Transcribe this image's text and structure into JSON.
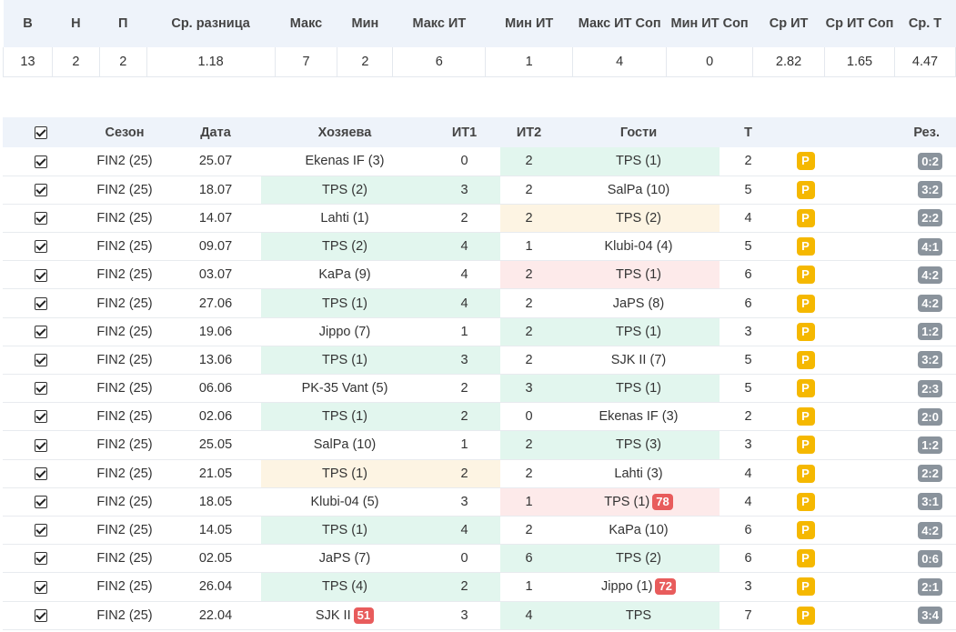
{
  "summary": {
    "headers": [
      "В",
      "Н",
      "П",
      "Ср. разница",
      "Макс",
      "Мин",
      "Макс ИТ",
      "Мин ИТ",
      "Макс ИТ Соп",
      "Мин ИТ Соп",
      "Ср ИТ",
      "Ср ИТ Соп",
      "Ср. Т"
    ],
    "values": [
      "13",
      "2",
      "2",
      "1.18",
      "7",
      "2",
      "6",
      "1",
      "4",
      "0",
      "2.82",
      "1.65",
      "4.47"
    ]
  },
  "matches": {
    "headers": {
      "season": "Сезон",
      "date": "Дата",
      "home": "Хозяева",
      "it1": "ИТ1",
      "it2": "ИТ2",
      "away": "Гости",
      "total": "Т",
      "result": "Рез."
    },
    "p_label": "P",
    "rows": [
      {
        "season": "FIN2 (25)",
        "date": "25.07",
        "home": "Ekenas IF (3)",
        "home_badge": "",
        "home_hl": "",
        "it1": "0",
        "it2": "2",
        "away": "TPS (1)",
        "away_badge": "",
        "away_hl": "green",
        "total": "2",
        "result": "0:2"
      },
      {
        "season": "FIN2 (25)",
        "date": "18.07",
        "home": "TPS (2)",
        "home_badge": "",
        "home_hl": "green",
        "it1": "3",
        "it2": "2",
        "away": "SalPa (10)",
        "away_badge": "",
        "away_hl": "",
        "total": "5",
        "result": "3:2"
      },
      {
        "season": "FIN2 (25)",
        "date": "14.07",
        "home": "Lahti (1)",
        "home_badge": "",
        "home_hl": "",
        "it1": "2",
        "it2": "2",
        "away": "TPS (2)",
        "away_badge": "",
        "away_hl": "yellow",
        "total": "4",
        "result": "2:2"
      },
      {
        "season": "FIN2 (25)",
        "date": "09.07",
        "home": "TPS (2)",
        "home_badge": "",
        "home_hl": "green",
        "it1": "4",
        "it2": "1",
        "away": "Klubi-04 (4)",
        "away_badge": "",
        "away_hl": "",
        "total": "5",
        "result": "4:1"
      },
      {
        "season": "FIN2 (25)",
        "date": "03.07",
        "home": "KaPa (9)",
        "home_badge": "",
        "home_hl": "",
        "it1": "4",
        "it2": "2",
        "away": "TPS (1)",
        "away_badge": "",
        "away_hl": "red",
        "total": "6",
        "result": "4:2"
      },
      {
        "season": "FIN2 (25)",
        "date": "27.06",
        "home": "TPS (1)",
        "home_badge": "",
        "home_hl": "green",
        "it1": "4",
        "it2": "2",
        "away": "JaPS (8)",
        "away_badge": "",
        "away_hl": "",
        "total": "6",
        "result": "4:2"
      },
      {
        "season": "FIN2 (25)",
        "date": "19.06",
        "home": "Jippo (7)",
        "home_badge": "",
        "home_hl": "",
        "it1": "1",
        "it2": "2",
        "away": "TPS (1)",
        "away_badge": "",
        "away_hl": "green",
        "total": "3",
        "result": "1:2"
      },
      {
        "season": "FIN2 (25)",
        "date": "13.06",
        "home": "TPS (1)",
        "home_badge": "",
        "home_hl": "green",
        "it1": "3",
        "it2": "2",
        "away": "SJK II (7)",
        "away_badge": "",
        "away_hl": "",
        "total": "5",
        "result": "3:2"
      },
      {
        "season": "FIN2 (25)",
        "date": "06.06",
        "home": "PK-35 Vant (5)",
        "home_badge": "",
        "home_hl": "",
        "it1": "2",
        "it2": "3",
        "away": "TPS (1)",
        "away_badge": "",
        "away_hl": "green",
        "total": "5",
        "result": "2:3"
      },
      {
        "season": "FIN2 (25)",
        "date": "02.06",
        "home": "TPS (1)",
        "home_badge": "",
        "home_hl": "green",
        "it1": "2",
        "it2": "0",
        "away": "Ekenas IF (3)",
        "away_badge": "",
        "away_hl": "",
        "total": "2",
        "result": "2:0"
      },
      {
        "season": "FIN2 (25)",
        "date": "25.05",
        "home": "SalPa (10)",
        "home_badge": "",
        "home_hl": "",
        "it1": "1",
        "it2": "2",
        "away": "TPS (3)",
        "away_badge": "",
        "away_hl": "green",
        "total": "3",
        "result": "1:2"
      },
      {
        "season": "FIN2 (25)",
        "date": "21.05",
        "home": "TPS (1)",
        "home_badge": "",
        "home_hl": "yellow",
        "it1": "2",
        "it2": "2",
        "away": "Lahti (3)",
        "away_badge": "",
        "away_hl": "",
        "total": "4",
        "result": "2:2"
      },
      {
        "season": "FIN2 (25)",
        "date": "18.05",
        "home": "Klubi-04 (5)",
        "home_badge": "",
        "home_hl": "",
        "it1": "3",
        "it2": "1",
        "away": "TPS (1)",
        "away_badge": "78",
        "away_hl": "red",
        "total": "4",
        "result": "3:1"
      },
      {
        "season": "FIN2 (25)",
        "date": "14.05",
        "home": "TPS (1)",
        "home_badge": "",
        "home_hl": "green",
        "it1": "4",
        "it2": "2",
        "away": "KaPa (10)",
        "away_badge": "",
        "away_hl": "",
        "total": "6",
        "result": "4:2"
      },
      {
        "season": "FIN2 (25)",
        "date": "02.05",
        "home": "JaPS (7)",
        "home_badge": "",
        "home_hl": "",
        "it1": "0",
        "it2": "6",
        "away": "TPS (2)",
        "away_badge": "",
        "away_hl": "green",
        "total": "6",
        "result": "0:6"
      },
      {
        "season": "FIN2 (25)",
        "date": "26.04",
        "home": "TPS (4)",
        "home_badge": "",
        "home_hl": "green",
        "it1": "2",
        "it2": "1",
        "away": "Jippo (1)",
        "away_badge": "72",
        "away_hl": "",
        "total": "3",
        "result": "2:1"
      },
      {
        "season": "FIN2 (25)",
        "date": "22.04",
        "home": "SJK II",
        "home_badge": "51",
        "home_hl": "",
        "it1": "3",
        "it2": "4",
        "away": "TPS",
        "away_badge": "",
        "away_hl": "green",
        "total": "7",
        "result": "3:4"
      }
    ]
  },
  "colors": {
    "header_bg": "#eef3fa",
    "win_highlight": "#e2f6ee",
    "draw_highlight": "#fdf4e3",
    "loss_highlight": "#fdeaea",
    "p_badge": "#f5b800",
    "result_badge": "#8a939c",
    "rank_badge": "#e85c5c"
  },
  "icons": {
    "row_checkbox": "checkbox-checked-icon",
    "header_checkbox": "checkbox-checked-icon"
  }
}
